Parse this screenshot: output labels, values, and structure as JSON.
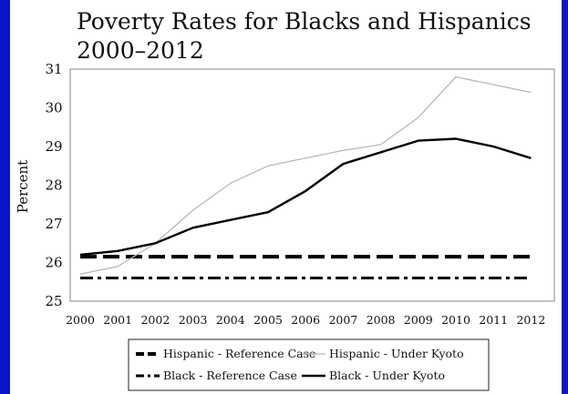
{
  "colors": {
    "background_border": "#0a14c8",
    "panel": "#ffffff",
    "black_series": "#000000",
    "hispanic_kyoto": "#b8b8b8",
    "frame": "#888888"
  },
  "chart_data": {
    "type": "line",
    "title": "Poverty Rates for Blacks and Hispanics",
    "subtitle": "2000–2012",
    "ylabel": "Percent",
    "xlabel": "",
    "x": [
      2000,
      2001,
      2002,
      2003,
      2004,
      2005,
      2006,
      2007,
      2008,
      2009,
      2010,
      2011,
      2012
    ],
    "x_tick_labels": [
      "2000",
      "2001",
      "2002",
      "2003",
      "2004",
      "2005",
      "2006",
      "2007",
      "2008",
      "2009",
      "2010",
      "2011",
      "2012"
    ],
    "ylim": [
      25,
      31
    ],
    "y_ticks": [
      25,
      26,
      27,
      28,
      29,
      30,
      31
    ],
    "grid": false,
    "legend_position": "bottom",
    "series": [
      {
        "name": "Hispanic - Reference Case",
        "style": "dashed-thick",
        "color": "#000000",
        "values": [
          26.15,
          26.15,
          26.15,
          26.15,
          26.15,
          26.15,
          26.15,
          26.15,
          26.15,
          26.15,
          26.15,
          26.15,
          26.15
        ]
      },
      {
        "name": "Hispanic - Under Kyoto",
        "style": "solid-thin",
        "color": "#b8b8b8",
        "values": [
          25.7,
          25.9,
          26.5,
          27.35,
          28.05,
          28.5,
          28.7,
          28.9,
          29.05,
          29.75,
          30.8,
          30.6,
          30.4
        ]
      },
      {
        "name": "Black - Reference Case",
        "style": "dashdot",
        "color": "#000000",
        "values": [
          25.6,
          25.6,
          25.6,
          25.6,
          25.6,
          25.6,
          25.6,
          25.6,
          25.6,
          25.6,
          25.6,
          25.6,
          25.6
        ]
      },
      {
        "name": "Black - Under Kyoto",
        "style": "solid-thick",
        "color": "#000000",
        "values": [
          26.2,
          26.3,
          26.5,
          26.9,
          27.1,
          27.3,
          27.85,
          28.55,
          28.85,
          29.15,
          29.2,
          29.0,
          28.7
        ]
      }
    ],
    "legend": [
      {
        "label": "Hispanic - Reference Case",
        "series_index": 0
      },
      {
        "label": "Hispanic - Under Kyoto",
        "series_index": 1
      },
      {
        "label": "Black - Reference Case",
        "series_index": 2
      },
      {
        "label": "Black - Under Kyoto",
        "series_index": 3
      }
    ]
  }
}
